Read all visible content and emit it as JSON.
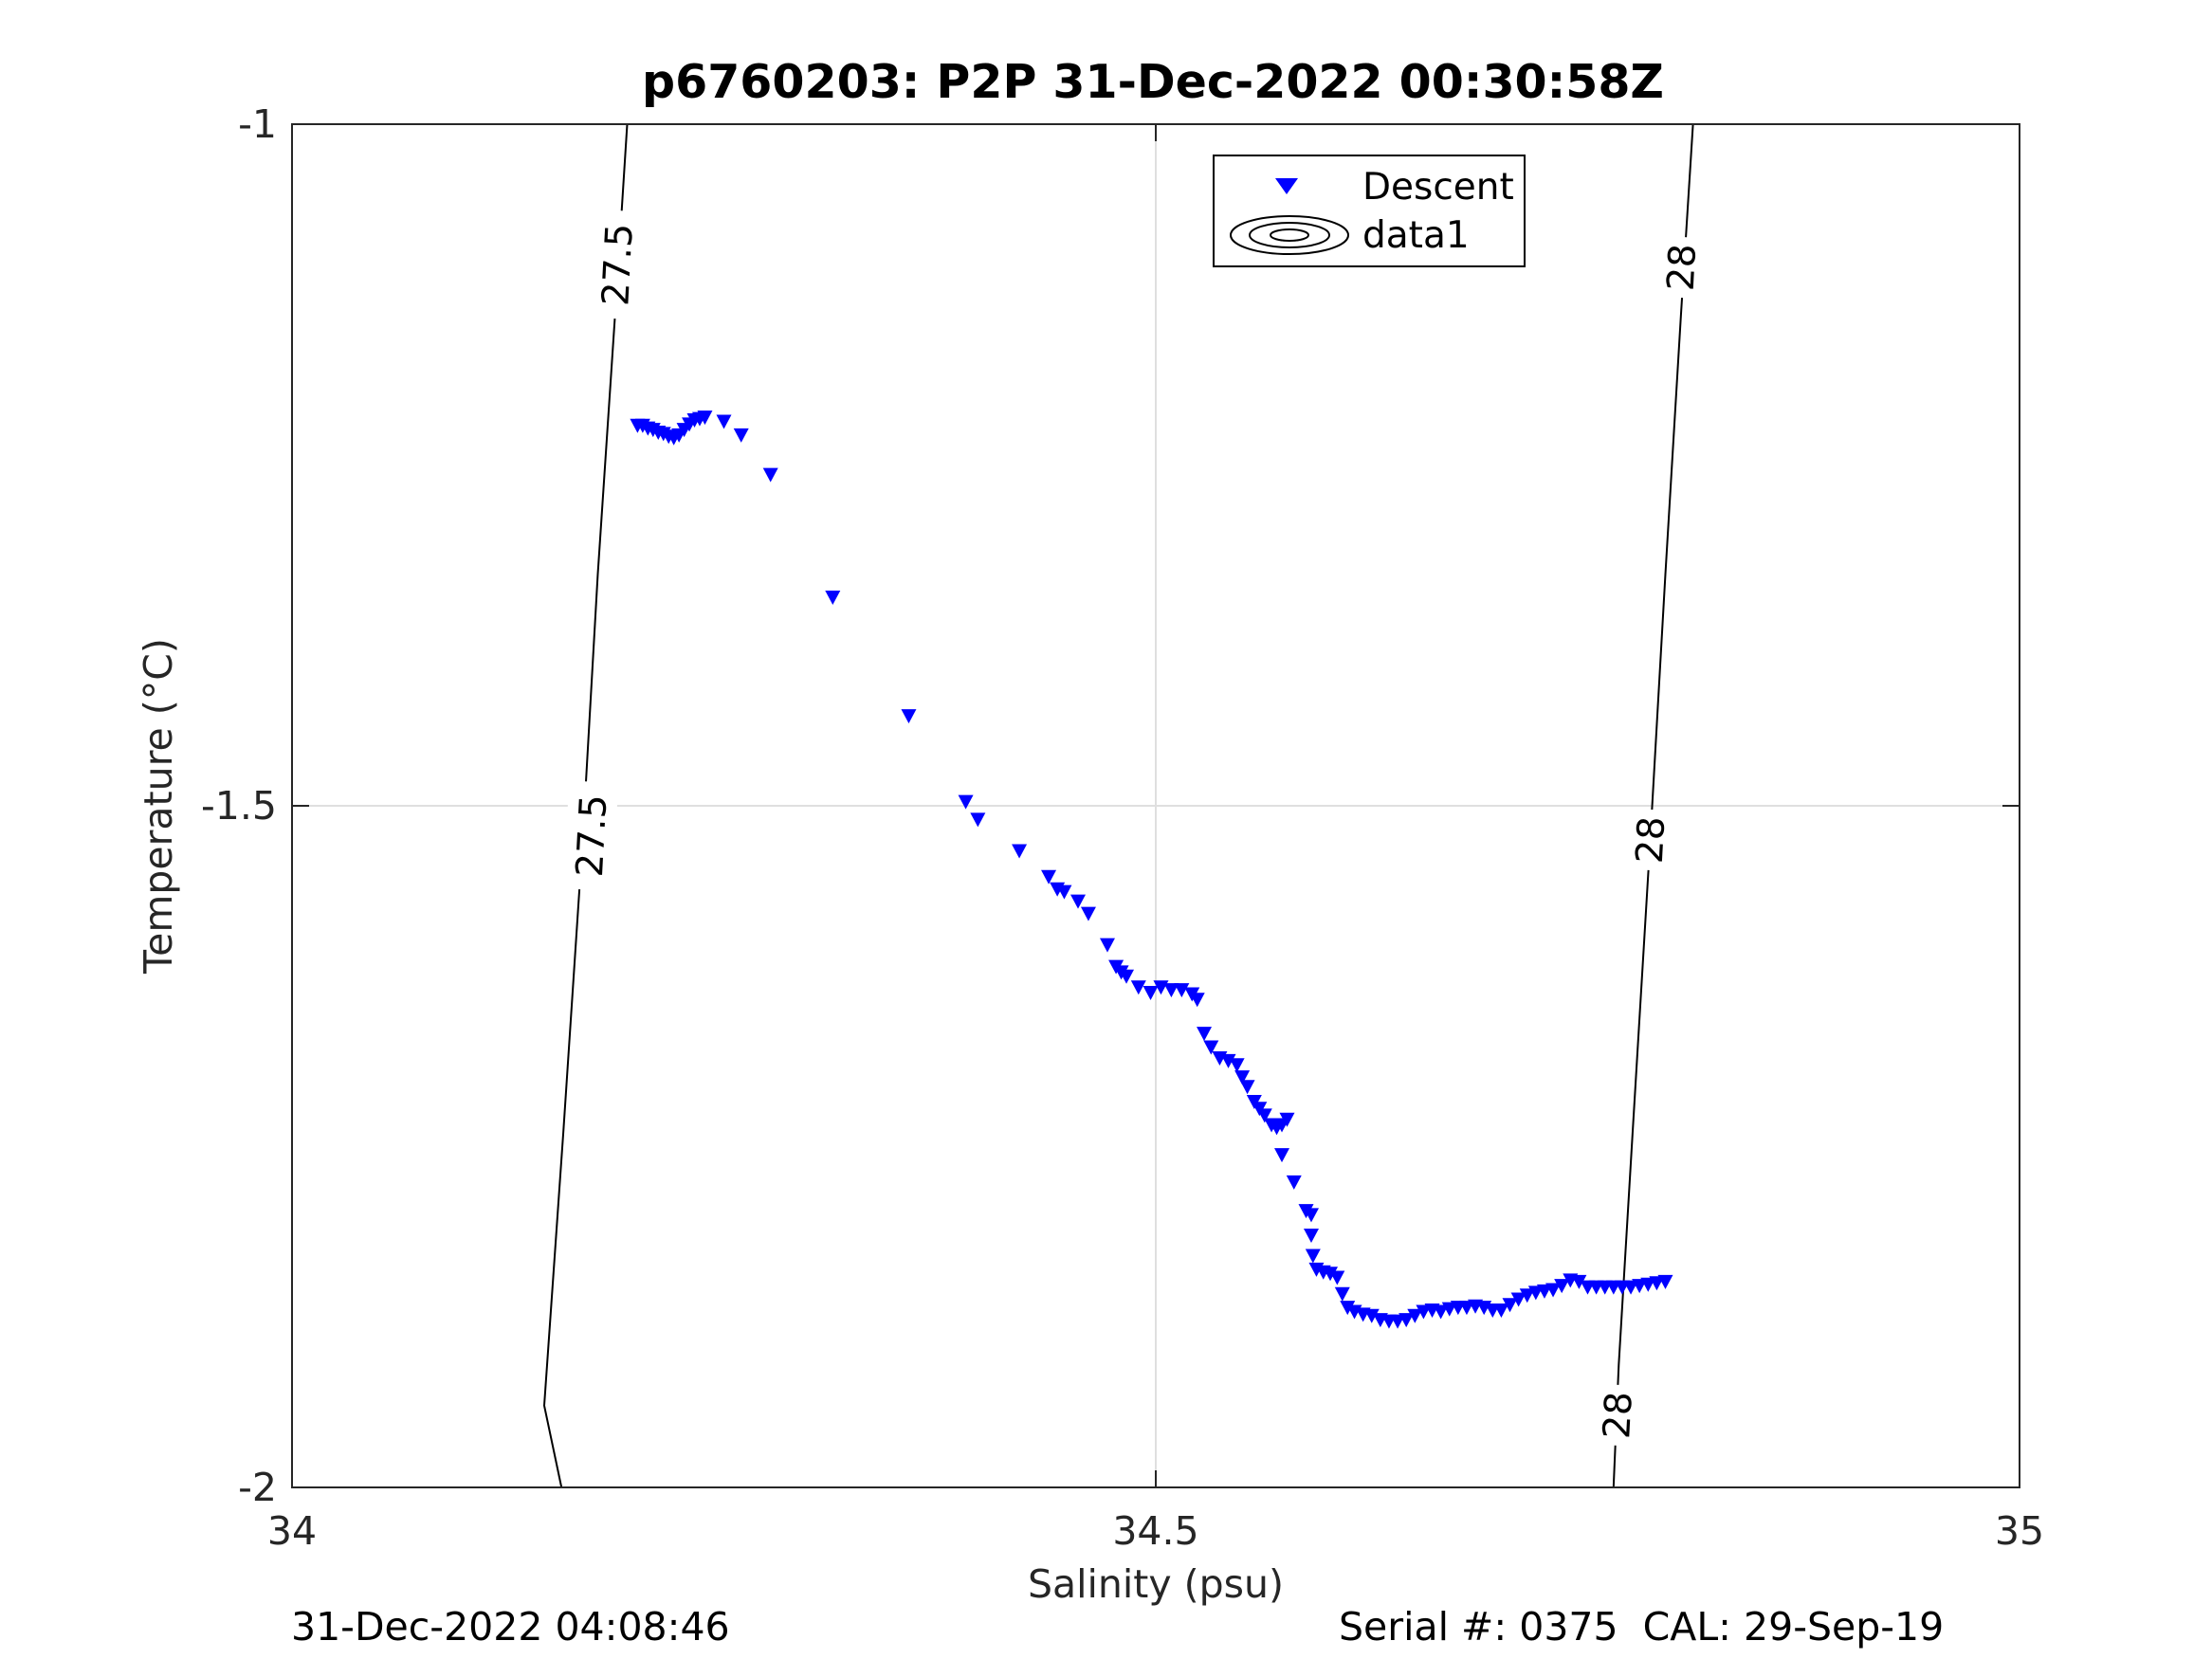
{
  "chart_data": {
    "type": "scatter",
    "title": "p6760203: P2P 31-Dec-2022 00:30:58Z",
    "xlabel": "Salinity (psu)",
    "ylabel": "Temperature (°C)",
    "xlim": [
      34,
      35
    ],
    "ylim": [
      -2,
      -1
    ],
    "x_ticks": [
      "34",
      "34.5",
      "35"
    ],
    "x_tick_values": [
      34,
      34.5,
      35
    ],
    "y_ticks": [
      "-1",
      "-1.5",
      "-2"
    ],
    "y_tick_values": [
      -1,
      -1.5,
      -2
    ],
    "grid": true,
    "legend_placement": "top-right-of-center",
    "legend": [
      {
        "label": "Descent",
        "marker": "triangle-down",
        "color": "#0000ff"
      },
      {
        "label": "data1",
        "marker": "contour",
        "color": "#000000"
      }
    ],
    "series": [
      {
        "name": "Descent",
        "marker": "triangle-down",
        "color": "#0000ff",
        "points": [
          [
            34.2,
            -1.221
          ],
          [
            34.203,
            -1.221
          ],
          [
            34.206,
            -1.223
          ],
          [
            34.209,
            -1.224
          ],
          [
            34.212,
            -1.226
          ],
          [
            34.215,
            -1.227
          ],
          [
            34.218,
            -1.229
          ],
          [
            34.221,
            -1.23
          ],
          [
            34.224,
            -1.228
          ],
          [
            34.227,
            -1.224
          ],
          [
            34.23,
            -1.22
          ],
          [
            34.233,
            -1.217
          ],
          [
            34.236,
            -1.216
          ],
          [
            34.239,
            -1.215
          ],
          [
            34.25,
            -1.218
          ],
          [
            34.26,
            -1.228
          ],
          [
            34.277,
            -1.257
          ],
          [
            34.313,
            -1.347
          ],
          [
            34.357,
            -1.434
          ],
          [
            34.39,
            -1.497
          ],
          [
            34.397,
            -1.51
          ],
          [
            34.421,
            -1.533
          ],
          [
            34.438,
            -1.552
          ],
          [
            34.443,
            -1.561
          ],
          [
            34.447,
            -1.563
          ],
          [
            34.455,
            -1.57
          ],
          [
            34.461,
            -1.579
          ],
          [
            34.472,
            -1.602
          ],
          [
            34.477,
            -1.618
          ],
          [
            34.48,
            -1.622
          ],
          [
            34.483,
            -1.625
          ],
          [
            34.49,
            -1.633
          ],
          [
            34.497,
            -1.637
          ],
          [
            34.503,
            -1.633
          ],
          [
            34.509,
            -1.635
          ],
          [
            34.515,
            -1.635
          ],
          [
            34.521,
            -1.638
          ],
          [
            34.524,
            -1.642
          ],
          [
            34.528,
            -1.667
          ],
          [
            34.532,
            -1.677
          ],
          [
            34.537,
            -1.685
          ],
          [
            34.542,
            -1.687
          ],
          [
            34.547,
            -1.69
          ],
          [
            34.55,
            -1.699
          ],
          [
            34.553,
            -1.706
          ],
          [
            34.557,
            -1.717
          ],
          [
            34.56,
            -1.722
          ],
          [
            34.563,
            -1.727
          ],
          [
            34.567,
            -1.734
          ],
          [
            34.57,
            -1.736
          ],
          [
            34.573,
            -1.734
          ],
          [
            34.576,
            -1.73
          ],
          [
            34.573,
            -1.756
          ],
          [
            34.58,
            -1.776
          ],
          [
            34.587,
            -1.797
          ],
          [
            34.59,
            -1.8
          ],
          [
            34.59,
            -1.815
          ],
          [
            34.591,
            -1.83
          ],
          [
            34.593,
            -1.84
          ],
          [
            34.597,
            -1.842
          ],
          [
            34.601,
            -1.843
          ],
          [
            34.605,
            -1.846
          ],
          [
            34.608,
            -1.858
          ],
          [
            34.611,
            -1.868
          ],
          [
            34.615,
            -1.871
          ],
          [
            34.62,
            -1.873
          ],
          [
            34.625,
            -1.874
          ],
          [
            34.63,
            -1.877
          ],
          [
            34.635,
            -1.878
          ],
          [
            34.64,
            -1.878
          ],
          [
            34.645,
            -1.877
          ],
          [
            34.65,
            -1.874
          ],
          [
            34.655,
            -1.871
          ],
          [
            34.66,
            -1.87
          ],
          [
            34.665,
            -1.871
          ],
          [
            34.67,
            -1.869
          ],
          [
            34.675,
            -1.868
          ],
          [
            34.68,
            -1.868
          ],
          [
            34.685,
            -1.867
          ],
          [
            34.69,
            -1.868
          ],
          [
            34.695,
            -1.87
          ],
          [
            34.7,
            -1.87
          ],
          [
            34.705,
            -1.866
          ],
          [
            34.71,
            -1.862
          ],
          [
            34.715,
            -1.859
          ],
          [
            34.72,
            -1.857
          ],
          [
            34.725,
            -1.856
          ],
          [
            34.73,
            -1.855
          ],
          [
            34.735,
            -1.852
          ],
          [
            34.74,
            -1.848
          ],
          [
            34.745,
            -1.849
          ],
          [
            34.75,
            -1.853
          ],
          [
            34.755,
            -1.853
          ],
          [
            34.76,
            -1.853
          ],
          [
            34.765,
            -1.853
          ],
          [
            34.77,
            -1.853
          ],
          [
            34.775,
            -1.853
          ],
          [
            34.78,
            -1.852
          ],
          [
            34.785,
            -1.851
          ],
          [
            34.79,
            -1.85
          ],
          [
            34.795,
            -1.849
          ]
        ]
      }
    ],
    "contours": [
      {
        "level": "27.5",
        "path": [
          [
            34.194,
            -1.0
          ],
          [
            34.187,
            -1.14
          ],
          [
            34.177,
            -1.33
          ],
          [
            34.168,
            -1.53
          ],
          [
            34.157,
            -1.74
          ],
          [
            34.146,
            -1.94
          ],
          [
            34.156,
            -2.0
          ]
        ]
      },
      {
        "level": "28",
        "path": [
          [
            34.811,
            -1.0
          ],
          [
            34.804,
            -1.14
          ],
          [
            34.795,
            -1.33
          ],
          [
            34.786,
            -1.53
          ],
          [
            34.776,
            -1.74
          ],
          [
            34.768,
            -1.91
          ],
          [
            34.765,
            -2.0
          ]
        ]
      }
    ],
    "contour_labels": [
      {
        "text": "27.5",
        "x": 34.188,
        "y": -1.103
      },
      {
        "text": "27.5",
        "x": 34.173,
        "y": -1.522
      },
      {
        "text": "28",
        "x": 34.804,
        "y": -1.105
      },
      {
        "text": "28",
        "x": 34.786,
        "y": -1.525
      },
      {
        "text": "28",
        "x": 34.767,
        "y": -1.947
      }
    ]
  },
  "footer": {
    "left": "31-Dec-2022 04:08:46",
    "right": "Serial #: 0375  CAL: 29-Sep-19"
  }
}
